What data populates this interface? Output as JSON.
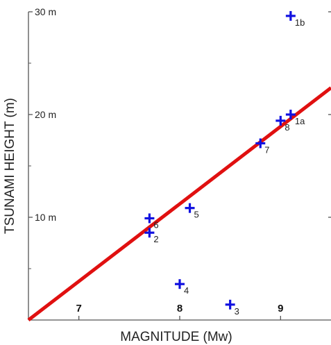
{
  "chart_data": {
    "type": "scatter",
    "xlabel": "MAGNITUDE (Mw)",
    "ylabel": "TSUNAMI HEIGHT (m)",
    "xlim": [
      6.5,
      9.5
    ],
    "ylim": [
      0,
      30
    ],
    "x_ticks": [
      {
        "value": 7,
        "label": "7"
      },
      {
        "value": 8,
        "label": "8"
      },
      {
        "value": 9,
        "label": "9"
      }
    ],
    "y_ticks": [
      {
        "value": 10,
        "label": "10 m"
      },
      {
        "value": 20,
        "label": "20 m"
      },
      {
        "value": 30,
        "label": "30 m"
      }
    ],
    "grid": false,
    "points": [
      {
        "label": "1b",
        "x": 9.1,
        "y": 29.6
      },
      {
        "label": "1a",
        "x": 9.1,
        "y": 20.0
      },
      {
        "label": "8",
        "x": 9.0,
        "y": 19.4
      },
      {
        "label": "7",
        "x": 8.8,
        "y": 17.2
      },
      {
        "label": "6",
        "x": 7.7,
        "y": 9.9
      },
      {
        "label": "5",
        "x": 8.1,
        "y": 10.9
      },
      {
        "label": "2",
        "x": 7.7,
        "y": 8.5
      },
      {
        "label": "4",
        "x": 8.0,
        "y": 3.5
      },
      {
        "label": "3",
        "x": 8.5,
        "y": 1.5
      }
    ],
    "fit_line": {
      "x": [
        6.5,
        9.5
      ],
      "y": [
        0,
        22.6
      ]
    },
    "colors": {
      "points": "#1010e0",
      "fit_line": "#e01010",
      "axis": "#555555"
    }
  }
}
